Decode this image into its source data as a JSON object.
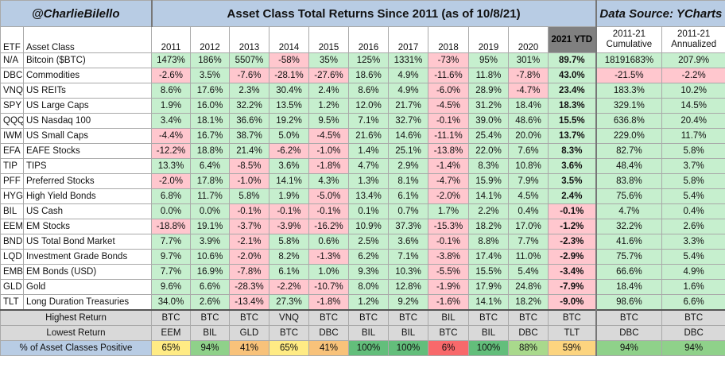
{
  "header": {
    "handle": "@CharlieBilello",
    "title": "Asset Class Total Returns Since 2011 (as of 10/8/21)",
    "source": "Data Source: YCharts"
  },
  "columns": {
    "etf": "ETF",
    "asset": "Asset Class",
    "years": [
      "2011",
      "2012",
      "2013",
      "2014",
      "2015",
      "2016",
      "2017",
      "2018",
      "2019",
      "2020"
    ],
    "ytd": "2021 YTD",
    "cumulative": "2011-21 Cumulative",
    "annualized": "2011-21 Annualized"
  },
  "colors": {
    "positive": "#c6efce",
    "negative": "#ffc7ce",
    "header_blue": "#b8cce4",
    "ytd_header": "#808080",
    "summary_gray": "#d9d9d9"
  },
  "rows": [
    {
      "etf": "N/A",
      "asset": "Bitcoin ($BTC)",
      "values": [
        "1473%",
        "186%",
        "5507%",
        "-58%",
        "35%",
        "125%",
        "1331%",
        "-73%",
        "95%",
        "301%"
      ],
      "ytd": "89.7%",
      "cum": "18191683%",
      "ann": "207.9%"
    },
    {
      "etf": "DBC",
      "asset": "Commodities",
      "values": [
        "-2.6%",
        "3.5%",
        "-7.6%",
        "-28.1%",
        "-27.6%",
        "18.6%",
        "4.9%",
        "-11.6%",
        "11.8%",
        "-7.8%"
      ],
      "ytd": "43.0%",
      "cum": "-21.5%",
      "ann": "-2.2%"
    },
    {
      "etf": "VNQ",
      "asset": "US REITs",
      "values": [
        "8.6%",
        "17.6%",
        "2.3%",
        "30.4%",
        "2.4%",
        "8.6%",
        "4.9%",
        "-6.0%",
        "28.9%",
        "-4.7%"
      ],
      "ytd": "23.4%",
      "cum": "183.3%",
      "ann": "10.2%"
    },
    {
      "etf": "SPY",
      "asset": "US Large Caps",
      "values": [
        "1.9%",
        "16.0%",
        "32.2%",
        "13.5%",
        "1.2%",
        "12.0%",
        "21.7%",
        "-4.5%",
        "31.2%",
        "18.4%"
      ],
      "ytd": "18.3%",
      "cum": "329.1%",
      "ann": "14.5%"
    },
    {
      "etf": "QQQ",
      "asset": "US Nasdaq 100",
      "values": [
        "3.4%",
        "18.1%",
        "36.6%",
        "19.2%",
        "9.5%",
        "7.1%",
        "32.7%",
        "-0.1%",
        "39.0%",
        "48.6%"
      ],
      "ytd": "15.5%",
      "cum": "636.8%",
      "ann": "20.4%"
    },
    {
      "etf": "IWM",
      "asset": "US Small Caps",
      "values": [
        "-4.4%",
        "16.7%",
        "38.7%",
        "5.0%",
        "-4.5%",
        "21.6%",
        "14.6%",
        "-11.1%",
        "25.4%",
        "20.0%"
      ],
      "ytd": "13.7%",
      "cum": "229.0%",
      "ann": "11.7%"
    },
    {
      "etf": "EFA",
      "asset": "EAFE Stocks",
      "values": [
        "-12.2%",
        "18.8%",
        "21.4%",
        "-6.2%",
        "-1.0%",
        "1.4%",
        "25.1%",
        "-13.8%",
        "22.0%",
        "7.6%"
      ],
      "ytd": "8.3%",
      "cum": "82.7%",
      "ann": "5.8%"
    },
    {
      "etf": "TIP",
      "asset": "TIPS",
      "values": [
        "13.3%",
        "6.4%",
        "-8.5%",
        "3.6%",
        "-1.8%",
        "4.7%",
        "2.9%",
        "-1.4%",
        "8.3%",
        "10.8%"
      ],
      "ytd": "3.6%",
      "cum": "48.4%",
      "ann": "3.7%"
    },
    {
      "etf": "PFF",
      "asset": "Preferred Stocks",
      "values": [
        "-2.0%",
        "17.8%",
        "-1.0%",
        "14.1%",
        "4.3%",
        "1.3%",
        "8.1%",
        "-4.7%",
        "15.9%",
        "7.9%"
      ],
      "ytd": "3.5%",
      "cum": "83.8%",
      "ann": "5.8%"
    },
    {
      "etf": "HYG",
      "asset": "High Yield Bonds",
      "values": [
        "6.8%",
        "11.7%",
        "5.8%",
        "1.9%",
        "-5.0%",
        "13.4%",
        "6.1%",
        "-2.0%",
        "14.1%",
        "4.5%"
      ],
      "ytd": "2.4%",
      "cum": "75.6%",
      "ann": "5.4%"
    },
    {
      "etf": "BIL",
      "asset": "US Cash",
      "values": [
        "0.0%",
        "0.0%",
        "-0.1%",
        "-0.1%",
        "-0.1%",
        "0.1%",
        "0.7%",
        "1.7%",
        "2.2%",
        "0.4%"
      ],
      "ytd": "-0.1%",
      "cum": "4.7%",
      "ann": "0.4%"
    },
    {
      "etf": "EEM",
      "asset": "EM Stocks",
      "values": [
        "-18.8%",
        "19.1%",
        "-3.7%",
        "-3.9%",
        "-16.2%",
        "10.9%",
        "37.3%",
        "-15.3%",
        "18.2%",
        "17.0%"
      ],
      "ytd": "-1.2%",
      "cum": "32.2%",
      "ann": "2.6%"
    },
    {
      "etf": "BND",
      "asset": "US Total Bond Market",
      "values": [
        "7.7%",
        "3.9%",
        "-2.1%",
        "5.8%",
        "0.6%",
        "2.5%",
        "3.6%",
        "-0.1%",
        "8.8%",
        "7.7%"
      ],
      "ytd": "-2.3%",
      "cum": "41.6%",
      "ann": "3.3%"
    },
    {
      "etf": "LQD",
      "asset": "Investment Grade Bonds",
      "values": [
        "9.7%",
        "10.6%",
        "-2.0%",
        "8.2%",
        "-1.3%",
        "6.2%",
        "7.1%",
        "-3.8%",
        "17.4%",
        "11.0%"
      ],
      "ytd": "-2.9%",
      "cum": "75.7%",
      "ann": "5.4%"
    },
    {
      "etf": "EMB",
      "asset": "EM Bonds (USD)",
      "values": [
        "7.7%",
        "16.9%",
        "-7.8%",
        "6.1%",
        "1.0%",
        "9.3%",
        "10.3%",
        "-5.5%",
        "15.5%",
        "5.4%"
      ],
      "ytd": "-3.4%",
      "cum": "66.6%",
      "ann": "4.9%"
    },
    {
      "etf": "GLD",
      "asset": "Gold",
      "values": [
        "9.6%",
        "6.6%",
        "-28.3%",
        "-2.2%",
        "-10.7%",
        "8.0%",
        "12.8%",
        "-1.9%",
        "17.9%",
        "24.8%"
      ],
      "ytd": "-7.9%",
      "cum": "18.4%",
      "ann": "1.6%"
    },
    {
      "etf": "TLT",
      "asset": "Long Duration Treasuries",
      "values": [
        "34.0%",
        "2.6%",
        "-13.4%",
        "27.3%",
        "-1.8%",
        "1.2%",
        "9.2%",
        "-1.6%",
        "14.1%",
        "18.2%"
      ],
      "ytd": "-9.0%",
      "cum": "98.6%",
      "ann": "6.6%"
    }
  ],
  "summary": {
    "highest": {
      "label": "Highest Return",
      "values": [
        "BTC",
        "BTC",
        "BTC",
        "VNQ",
        "BTC",
        "BTC",
        "BTC",
        "BIL",
        "BTC",
        "BTC",
        "BTC",
        "BTC",
        "BTC"
      ]
    },
    "lowest": {
      "label": "Lowest Return",
      "values": [
        "EEM",
        "BIL",
        "GLD",
        "BTC",
        "DBC",
        "BIL",
        "BIL",
        "BTC",
        "BIL",
        "DBC",
        "TLT",
        "DBC",
        "DBC"
      ]
    },
    "positive": {
      "label": "% of Asset Classes Positive",
      "values": [
        "65%",
        "94%",
        "41%",
        "65%",
        "41%",
        "100%",
        "100%",
        "6%",
        "100%",
        "88%",
        "59%",
        "94%",
        "94%"
      ],
      "colors": [
        "#ffeb84",
        "#8fd18a",
        "#f8c27a",
        "#ffeb84",
        "#f8c27a",
        "#63be7b",
        "#63be7b",
        "#f8696b",
        "#63be7b",
        "#a9d98c",
        "#fcd47f",
        "#8fd18a",
        "#8fd18a"
      ]
    }
  }
}
